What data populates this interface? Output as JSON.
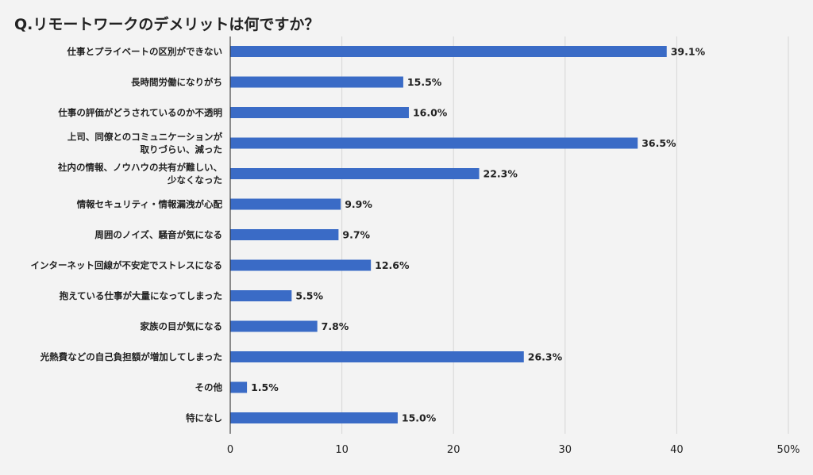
{
  "chart_data": {
    "type": "bar",
    "orientation": "horizontal",
    "title": "Q.リモートワークのデメリットは何ですか？",
    "categories": [
      [
        "仕事とプライベートの区別ができない"
      ],
      [
        "長時間労働になりがち"
      ],
      [
        "仕事の評価がどうされているのか不透明"
      ],
      [
        "上司、同僚とのコミュニケーションが",
        "取りづらい、減った"
      ],
      [
        "社内の情報、ノウハウの共有が難しい、",
        "少なくなった"
      ],
      [
        "情報セキュリティ・情報漏洩が心配"
      ],
      [
        "周囲のノイズ、騒音が気になる"
      ],
      [
        "インターネット回線が不安定でストレスになる"
      ],
      [
        "抱えている仕事が大量になってしまった"
      ],
      [
        "家族の目が気になる"
      ],
      [
        "光熱費などの自己負担額が増加してしまった"
      ],
      [
        "その他"
      ],
      [
        "特になし"
      ]
    ],
    "values": [
      39.1,
      15.5,
      16.0,
      36.5,
      22.3,
      9.9,
      9.7,
      12.6,
      5.5,
      7.8,
      26.3,
      1.5,
      15.0
    ],
    "value_labels": [
      "39.1%",
      "15.5%",
      "16.0%",
      "36.5%",
      "22.3%",
      "9.9%",
      "9.7%",
      "12.6%",
      "5.5%",
      "7.8%",
      "26.3%",
      "1.5%",
      "15.0%"
    ],
    "x_ticks": [
      0,
      10,
      20,
      30,
      40,
      50
    ],
    "x_tick_labels": [
      "0",
      "10",
      "20",
      "30",
      "40",
      "50%"
    ],
    "xlim": [
      0,
      50
    ],
    "bar_color": "#3a6bc6",
    "grid": true,
    "legend": "none"
  }
}
